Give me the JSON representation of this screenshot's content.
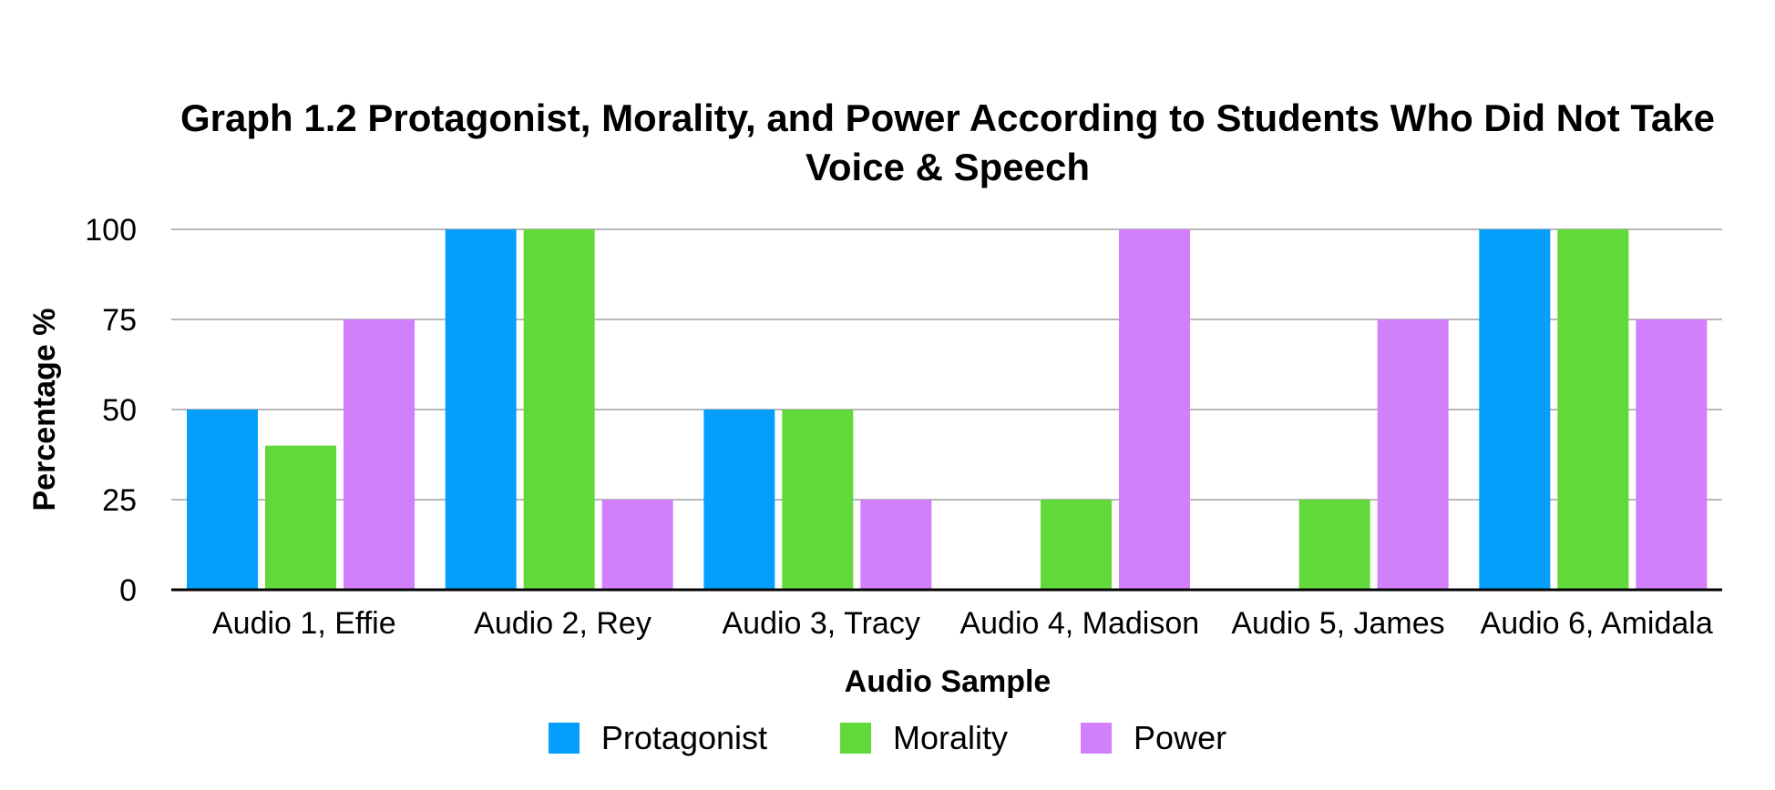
{
  "chart_data": {
    "type": "bar",
    "title": "Graph 1.2 Protagonist, Morality, and Power According to Students Who Did Not Take Voice & Speech",
    "xlabel": "Audio Sample",
    "ylabel": "Percentage %",
    "ylim": [
      0,
      100
    ],
    "yticks": [
      0,
      25,
      50,
      75,
      100
    ],
    "grid": true,
    "legend_position": "bottom",
    "categories": [
      "Audio 1, Effie",
      "Audio 2, Rey",
      "Audio 3, Tracy",
      "Audio 4, Madison",
      "Audio 5, James",
      "Audio 6, Amidala"
    ],
    "series": [
      {
        "name": "Protagonist",
        "color": "#049ffb",
        "values": [
          50,
          100,
          50,
          0,
          0,
          100
        ]
      },
      {
        "name": "Morality",
        "color": "#62d93b",
        "values": [
          40,
          100,
          50,
          25,
          25,
          100
        ]
      },
      {
        "name": "Power",
        "color": "#d17ffa",
        "values": [
          75,
          25,
          25,
          100,
          75,
          75
        ]
      }
    ]
  }
}
